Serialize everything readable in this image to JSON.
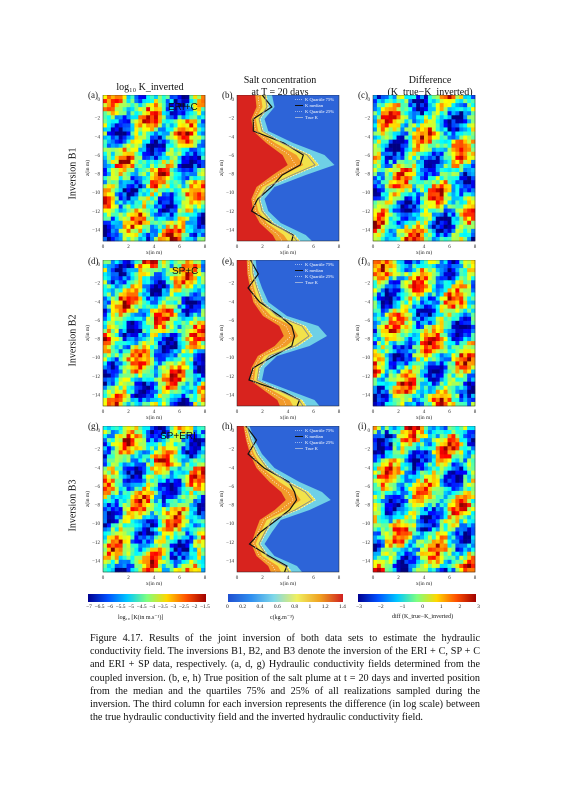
{
  "columns": {
    "col1_title": "log₁₀ K_inverted",
    "col2_title_line1": "Salt concentration",
    "col2_title_line2": "at T = 20 days",
    "col3_title_line1": "Difference",
    "col3_title_line2": "(K_true−K_inverted)"
  },
  "panel_labels": [
    "(a)",
    "(b)",
    "(c)",
    "(d)",
    "(e)",
    "(f)",
    "(g)",
    "(h)",
    "(i)"
  ],
  "row_labels": [
    "Inversion B1",
    "Inversion B2",
    "Inversion B3"
  ],
  "methods": [
    "ERI+C",
    "SP+C",
    "SP+ERI"
  ],
  "axis": {
    "z_label": "z(in m)",
    "x_label": "x(in m)",
    "z_ticks": [
      "0",
      "−2",
      "−4",
      "−6",
      "−8",
      "−10",
      "−12",
      "−14"
    ],
    "x_ticks": [
      "0",
      "2",
      "4",
      "6",
      "8"
    ]
  },
  "legend": [
    "K Quartile 75%",
    "K median",
    "K Quartile 25%",
    "True K"
  ],
  "colorbars": {
    "k": {
      "ticks": [
        "−7",
        "−6.5",
        "−6",
        "−5.5",
        "−5",
        "−4.5",
        "−4",
        "−3.5",
        "−3",
        "−2.5",
        "−2",
        "−1.5"
      ],
      "label": "log₁₀ [K(in m.s⁻¹)]"
    },
    "c": {
      "ticks": [
        "0",
        "0.2",
        "0.4",
        "0.6",
        "0.8",
        "1",
        "1.2",
        "1.4"
      ],
      "label": "c(kg.m⁻³)"
    },
    "d": {
      "ticks": [
        "−3",
        "−2",
        "−1",
        "0",
        "1",
        "2",
        "3"
      ],
      "label": "diff (K_true−K_inverted)"
    }
  },
  "caption": {
    "figure_number": "Figure 4.17.",
    "text": "Results of the joint inversion of both data sets to estimate the hydraulic conductivity field. The inversions B1, B2, and B3 denote the inversion of the ERI + C, SP + C and ERI + SP data, respectively. (a, d, g) Hydraulic conductivity fields determined from the coupled inversion. (b, e, h) True position of the salt plume at t = 20 days and inverted position from the median and the quartiles 75% and 25% of all realizations sampled during the inversion. The third column for each inversion represents the difference (in log scale) between the true hydraulic conductivity field and the inverted hydraulic conductivity field."
  },
  "colors": {
    "jet_blue": "#2a5bd6",
    "jet_cyan": "#41c6e8",
    "jet_yellow": "#f4df3a",
    "jet_red": "#d8231e",
    "plume_bg": "#2d64d8"
  }
}
